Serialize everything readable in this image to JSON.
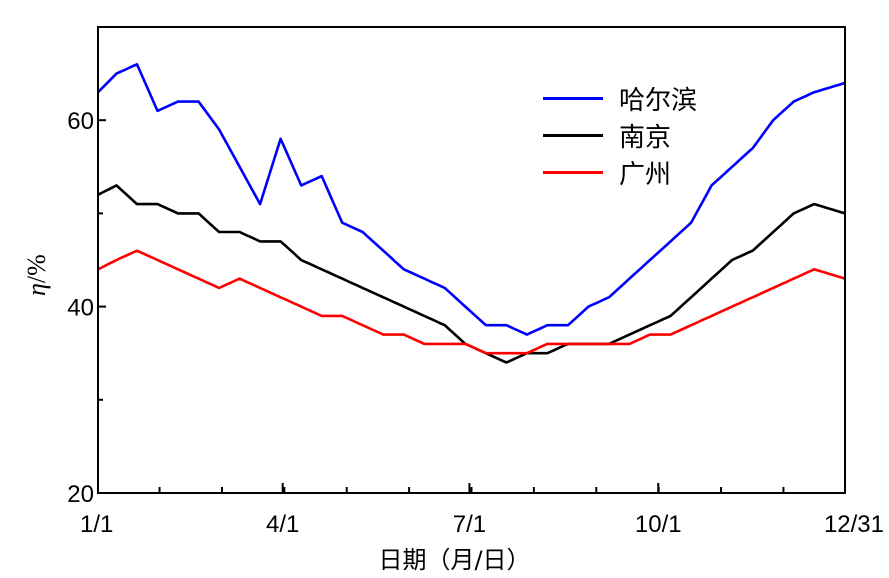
{
  "chart_data": {
    "type": "line",
    "xlabel": "日期（月/日）",
    "ylabel_prefix": "η",
    "ylabel_suffix": "/%",
    "xlim": [
      1,
      365
    ],
    "ylim": [
      20,
      70
    ],
    "y_ticks": [
      20,
      40,
      60
    ],
    "x_ticks": [
      {
        "day": 1,
        "label": "1/1"
      },
      {
        "day": 91,
        "label": "4/1"
      },
      {
        "day": 182,
        "label": "7/1"
      },
      {
        "day": 274,
        "label": "10/1"
      },
      {
        "day": 365,
        "label": "12/31"
      }
    ],
    "grid": false,
    "legend_position": "top-right",
    "series": [
      {
        "name": "哈尔滨",
        "color": "#0000ff",
        "x": [
          1,
          10,
          20,
          30,
          40,
          50,
          60,
          70,
          80,
          90,
          100,
          110,
          120,
          130,
          140,
          150,
          160,
          170,
          180,
          190,
          200,
          210,
          220,
          230,
          240,
          250,
          260,
          270,
          280,
          290,
          300,
          310,
          320,
          330,
          340,
          350,
          365
        ],
        "y": [
          63,
          65,
          66,
          61,
          62,
          62,
          59,
          55,
          51,
          58,
          53,
          54,
          49,
          48,
          46,
          44,
          43,
          42,
          40,
          38,
          38,
          37,
          38,
          38,
          40,
          41,
          43,
          45,
          47,
          49,
          53,
          55,
          57,
          60,
          62,
          63,
          64
        ]
      },
      {
        "name": "南京",
        "color": "#000000",
        "x": [
          1,
          10,
          20,
          30,
          40,
          50,
          60,
          70,
          80,
          90,
          100,
          110,
          120,
          130,
          140,
          150,
          160,
          170,
          180,
          190,
          200,
          210,
          220,
          230,
          240,
          250,
          260,
          270,
          280,
          290,
          300,
          310,
          320,
          330,
          340,
          350,
          365
        ],
        "y": [
          52,
          53,
          51,
          51,
          50,
          50,
          48,
          48,
          47,
          47,
          45,
          44,
          43,
          42,
          41,
          40,
          39,
          38,
          36,
          35,
          34,
          35,
          35,
          36,
          36,
          36,
          37,
          38,
          39,
          41,
          43,
          45,
          46,
          48,
          50,
          51,
          50
        ]
      },
      {
        "name": "广州",
        "color": "#ff0000",
        "x": [
          1,
          10,
          20,
          30,
          40,
          50,
          60,
          70,
          80,
          90,
          100,
          110,
          120,
          130,
          140,
          150,
          160,
          170,
          180,
          190,
          200,
          210,
          220,
          230,
          240,
          250,
          260,
          270,
          280,
          290,
          300,
          310,
          320,
          330,
          340,
          350,
          365
        ],
        "y": [
          44,
          45,
          46,
          45,
          44,
          43,
          42,
          43,
          42,
          41,
          40,
          39,
          39,
          38,
          37,
          37,
          36,
          36,
          36,
          35,
          35,
          35,
          36,
          36,
          36,
          36,
          36,
          37,
          37,
          38,
          39,
          40,
          41,
          42,
          43,
          44,
          43
        ]
      }
    ]
  }
}
